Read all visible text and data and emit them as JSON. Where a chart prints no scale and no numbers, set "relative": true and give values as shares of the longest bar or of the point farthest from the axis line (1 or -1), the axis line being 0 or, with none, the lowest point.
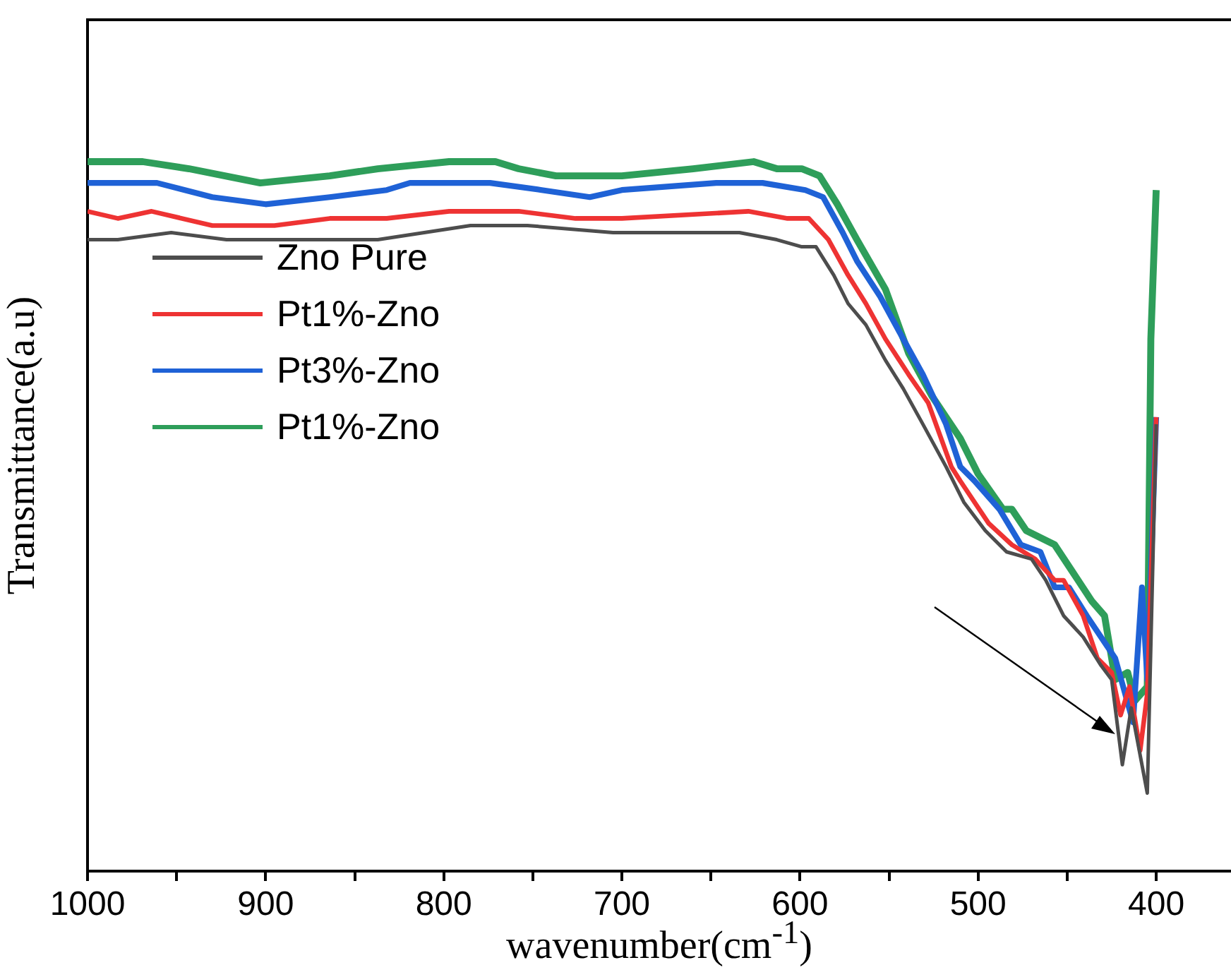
{
  "chart_data": {
    "type": "line",
    "relative": true,
    "xlabel": "wavenumber(cm$^{-1}$)",
    "ylabel": "Transmittance(a.u)",
    "xlim": [
      1000,
      358
    ],
    "xticks": [
      1000,
      {
        "value": 950,
        "label": null
      },
      900,
      {
        "value": 850,
        "label": null
      },
      800,
      {
        "value": 750,
        "label": null
      },
      700,
      {
        "value": 650,
        "label": null
      },
      600,
      {
        "value": 550,
        "label": null
      },
      500,
      {
        "value": 450,
        "label": null
      },
      400
    ],
    "legend": "top left",
    "series": [
      {
        "name": "Zno Pure",
        "color": "#4d4d4d",
        "x": [
          1000,
          983,
          953,
          922,
          890,
          866,
          837,
          785,
          753,
          705,
          634,
          613,
          599,
          591,
          581,
          573,
          563,
          552,
          542,
          531,
          518,
          508,
          496,
          484,
          470,
          462,
          452,
          441,
          431,
          425,
          419,
          414,
          405,
          400
        ],
        "values": [
          0.89,
          0.89,
          0.9,
          0.89,
          0.89,
          0.89,
          0.89,
          0.91,
          0.91,
          0.9,
          0.9,
          0.89,
          0.88,
          0.88,
          0.84,
          0.8,
          0.77,
          0.72,
          0.68,
          0.63,
          0.57,
          0.52,
          0.48,
          0.45,
          0.44,
          0.41,
          0.36,
          0.33,
          0.29,
          0.27,
          0.15,
          0.23,
          0.11,
          0.63
        ]
      },
      {
        "name": "Pt1%-Zno",
        "color": "#ee3333",
        "x": [
          1000,
          983,
          964,
          930,
          895,
          864,
          832,
          797,
          758,
          726,
          700,
          629,
          607,
          595,
          584,
          573,
          563,
          552,
          539,
          528,
          515,
          510,
          494,
          481,
          468,
          457,
          452,
          441,
          433,
          425,
          420,
          415,
          409,
          405,
          400
        ],
        "values": [
          0.93,
          0.92,
          0.93,
          0.91,
          0.91,
          0.92,
          0.92,
          0.93,
          0.93,
          0.92,
          0.92,
          0.93,
          0.92,
          0.92,
          0.89,
          0.84,
          0.8,
          0.75,
          0.7,
          0.66,
          0.57,
          0.55,
          0.49,
          0.46,
          0.44,
          0.41,
          0.41,
          0.36,
          0.3,
          0.28,
          0.22,
          0.26,
          0.17,
          0.25,
          0.64
        ]
      },
      {
        "name": "Pt3%-Zno",
        "color": "#1f62d6",
        "x": [
          1000,
          961,
          930,
          900,
          864,
          832,
          819,
          774,
          745,
          718,
          700,
          647,
          621,
          597,
          587,
          576,
          568,
          555,
          542,
          531,
          518,
          510,
          502,
          488,
          476,
          465,
          457,
          449,
          439,
          423,
          413,
          408,
          405,
          400
        ],
        "values": [
          0.97,
          0.97,
          0.95,
          0.94,
          0.95,
          0.96,
          0.97,
          0.97,
          0.96,
          0.95,
          0.96,
          0.97,
          0.97,
          0.96,
          0.95,
          0.9,
          0.86,
          0.81,
          0.75,
          0.7,
          0.63,
          0.57,
          0.55,
          0.51,
          0.46,
          0.45,
          0.4,
          0.4,
          0.36,
          0.3,
          0.21,
          0.4,
          0.27,
          0.64
        ]
      },
      {
        "name": "Pt1%-Zno",
        "color": "#2e9e5a",
        "x": [
          1000,
          969,
          943,
          903,
          864,
          837,
          797,
          771,
          758,
          737,
          716,
          700,
          660,
          626,
          613,
          599,
          589,
          579,
          568,
          552,
          539,
          526,
          510,
          500,
          486,
          481,
          473,
          457,
          436,
          429,
          423,
          416,
          412,
          405,
          403,
          400
        ],
        "values": [
          1.0,
          1.0,
          0.99,
          0.97,
          0.98,
          0.99,
          1.0,
          1.0,
          0.99,
          0.98,
          0.98,
          0.98,
          0.99,
          1.0,
          0.99,
          0.99,
          0.98,
          0.94,
          0.89,
          0.82,
          0.73,
          0.67,
          0.61,
          0.56,
          0.51,
          0.51,
          0.48,
          0.46,
          0.38,
          0.36,
          0.27,
          0.28,
          0.24,
          0.26,
          0.75,
          0.96
        ]
      }
    ]
  }
}
